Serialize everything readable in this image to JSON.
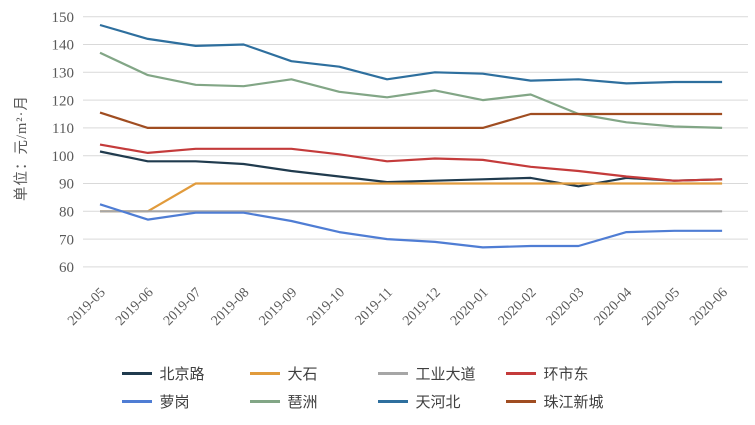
{
  "y_axis_title": "单位：元/m²·月",
  "chart_data": {
    "type": "line",
    "title": "",
    "xlabel": "",
    "ylabel": "单位：元/m²·月",
    "ylim": [
      60,
      150
    ],
    "ytick_step": 10,
    "grid": true,
    "legend_position": "bottom",
    "categories": [
      "2019-05",
      "2019-06",
      "2019-07",
      "2019-08",
      "2019-09",
      "2019-10",
      "2019-11",
      "2019-12",
      "2020-01",
      "2020-02",
      "2020-03",
      "2020-04",
      "2020-05",
      "2020-06"
    ],
    "series": [
      {
        "name": "北京路",
        "color": "#203B4E",
        "values": [
          101.5,
          98,
          98,
          97,
          94.5,
          92.5,
          90.5,
          91,
          91.5,
          92,
          89,
          92,
          91,
          91.5
        ]
      },
      {
        "name": "大石",
        "color": "#E19B3C",
        "values": [
          80,
          80,
          90,
          90,
          90,
          90,
          90,
          90,
          90,
          90,
          90,
          90,
          90,
          90
        ]
      },
      {
        "name": "工业大道",
        "color": "#A6A6A6",
        "values": [
          80,
          80,
          80,
          80,
          80,
          80,
          80,
          80,
          80,
          80,
          80,
          80,
          80,
          80
        ]
      },
      {
        "name": "环市东",
        "color": "#C43B3B",
        "values": [
          104,
          101,
          102.5,
          102.5,
          102.5,
          100.5,
          98,
          99,
          98.5,
          96,
          94.5,
          92.5,
          91,
          91.5
        ]
      },
      {
        "name": "萝岗",
        "color": "#4F7DD4",
        "values": [
          82.5,
          77,
          79.5,
          79.5,
          76.5,
          72.5,
          70,
          69,
          67,
          67.5,
          67.5,
          72.5,
          73,
          73
        ]
      },
      {
        "name": "琶洲",
        "color": "#82A686",
        "values": [
          137,
          129,
          125.5,
          125,
          127.5,
          123,
          121,
          123.5,
          120,
          122,
          115,
          112,
          110.5,
          110
        ]
      },
      {
        "name": "天河北",
        "color": "#2E6F9E",
        "values": [
          147,
          142,
          139.5,
          140,
          134,
          132,
          127.5,
          130,
          129.5,
          127,
          127.5,
          126,
          126.5,
          126.5
        ]
      },
      {
        "name": "珠江新城",
        "color": "#A04D21",
        "values": [
          115.5,
          110,
          110,
          110,
          110,
          110,
          110,
          110,
          110,
          115,
          115,
          115,
          115,
          115
        ]
      }
    ]
  },
  "legend": {
    "items_per_row": 4
  }
}
